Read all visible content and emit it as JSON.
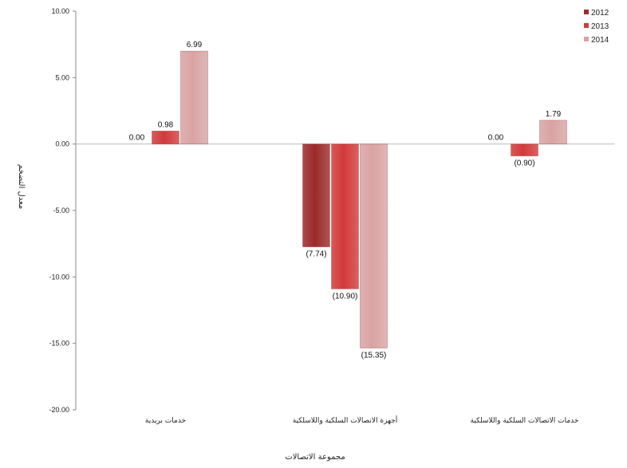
{
  "chart_data": {
    "type": "bar",
    "categories": [
      "خدمات بريدية",
      "أجهزة الاتصالات السلكية واللاسلكية",
      "خدمات الاتصالات السلكية واللاسلكية"
    ],
    "series": [
      {
        "name": "2012",
        "color": "#9b2a2a",
        "values": [
          0.0,
          -7.74,
          0.0
        ],
        "labels": [
          "0.00",
          "(7.74)",
          "0.00"
        ]
      },
      {
        "name": "2013",
        "color": "#d23a3a",
        "values": [
          0.98,
          -10.9,
          -0.9
        ],
        "labels": [
          "0.98",
          "(10.90)",
          "(0.90)"
        ]
      },
      {
        "name": "2014",
        "color": "#d9a3a3",
        "values": [
          6.99,
          -15.35,
          1.79
        ],
        "labels": [
          "6.99",
          "(15.35)",
          "1.79"
        ]
      }
    ],
    "yticks": [
      "10.00",
      "5.00",
      "0.00",
      "-5.00",
      "-10.00",
      "-15.00",
      "-20.00"
    ],
    "ylim": [
      -20,
      10
    ],
    "xlabel": "مجموعة الاتصالات",
    "ylabel": "معدل التضخم",
    "legend": "top-right",
    "grid": false
  }
}
